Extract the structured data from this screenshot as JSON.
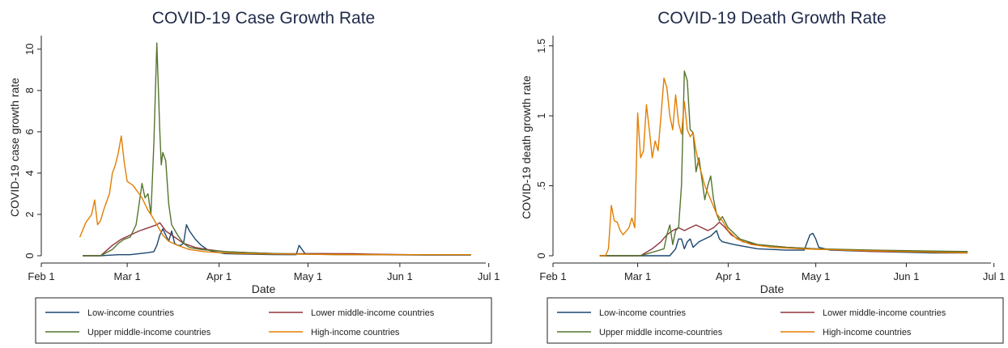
{
  "colors": {
    "low": "#1a476f",
    "lower_middle": "#90353b",
    "upper_middle": "#55752f",
    "high": "#e37e00"
  },
  "chart_data": [
    {
      "type": "line",
      "title": "COVID-19 Case Growth Rate",
      "xlabel": "Date",
      "ylabel": "COVID-19 case growth rate",
      "x_ticks": [
        "Feb 1",
        "Mar 1",
        "Apr 1",
        "May 1",
        "Jun 1",
        "Jul 1"
      ],
      "y_ticks": [
        "0",
        "2",
        "4",
        "6",
        "8",
        "10"
      ],
      "y_tick_values": [
        0,
        2,
        4,
        6,
        8,
        10
      ],
      "ylim": [
        0,
        10.5
      ],
      "x_domain_days": [
        0,
        150
      ],
      "legend_position": "bottom",
      "grid": false,
      "series": [
        {
          "name": "Low-income countries",
          "key": "low",
          "points": [
            [
              14,
              0
            ],
            [
              20,
              0
            ],
            [
              26,
              0.05
            ],
            [
              30,
              0.05
            ],
            [
              33,
              0.1
            ],
            [
              36,
              0.15
            ],
            [
              38,
              0.2
            ],
            [
              39,
              0.5
            ],
            [
              40,
              1.0
            ],
            [
              41,
              1.3
            ],
            [
              42,
              1.0
            ],
            [
              43,
              0.7
            ],
            [
              44,
              1.2
            ],
            [
              45,
              0.6
            ],
            [
              46,
              0.5
            ],
            [
              47,
              0.5
            ],
            [
              48,
              0.6
            ],
            [
              49,
              1.5
            ],
            [
              50,
              1.2
            ],
            [
              52,
              0.8
            ],
            [
              54,
              0.5
            ],
            [
              56,
              0.3
            ],
            [
              58,
              0.2
            ],
            [
              62,
              0.1
            ],
            [
              70,
              0.08
            ],
            [
              78,
              0.06
            ],
            [
              86,
              0.05
            ],
            [
              87,
              0.5
            ],
            [
              88,
              0.3
            ],
            [
              89,
              0.1
            ],
            [
              95,
              0.1
            ],
            [
              105,
              0.08
            ],
            [
              110,
              0.05
            ],
            [
              130,
              0.03
            ],
            [
              145,
              0.03
            ]
          ]
        },
        {
          "name": "Lower middle-income countries",
          "key": "lower_middle",
          "points": [
            [
              14,
              0
            ],
            [
              20,
              0
            ],
            [
              24,
              0.5
            ],
            [
              27,
              0.8
            ],
            [
              30,
              1.0
            ],
            [
              33,
              1.2
            ],
            [
              35,
              1.3
            ],
            [
              37,
              1.4
            ],
            [
              39,
              1.5
            ],
            [
              40,
              1.6
            ],
            [
              41,
              1.4
            ],
            [
              42,
              1.2
            ],
            [
              44,
              1.0
            ],
            [
              46,
              0.8
            ],
            [
              48,
              0.6
            ],
            [
              52,
              0.4
            ],
            [
              56,
              0.3
            ],
            [
              62,
              0.2
            ],
            [
              70,
              0.15
            ],
            [
              80,
              0.1
            ],
            [
              95,
              0.1
            ],
            [
              105,
              0.1
            ],
            [
              110,
              0.08
            ],
            [
              125,
              0.05
            ],
            [
              145,
              0.05
            ]
          ]
        },
        {
          "name": "Upper middle-income countries",
          "key": "upper_middle",
          "points": [
            [
              14,
              0
            ],
            [
              20,
              0
            ],
            [
              24,
              0.3
            ],
            [
              26,
              0.6
            ],
            [
              28,
              0.8
            ],
            [
              30,
              0.9
            ],
            [
              32,
              1.5
            ],
            [
              33,
              2.5
            ],
            [
              34,
              3.5
            ],
            [
              35,
              2.8
            ],
            [
              36,
              3.0
            ],
            [
              37,
              2.0
            ],
            [
              38,
              5.5
            ],
            [
              39,
              10.3
            ],
            [
              40,
              6.0
            ],
            [
              40.5,
              4.4
            ],
            [
              41,
              5.0
            ],
            [
              42,
              4.6
            ],
            [
              43,
              2.5
            ],
            [
              44,
              1.5
            ],
            [
              46,
              1.0
            ],
            [
              48,
              0.6
            ],
            [
              50,
              0.4
            ],
            [
              54,
              0.3
            ],
            [
              58,
              0.25
            ],
            [
              62,
              0.2
            ],
            [
              70,
              0.15
            ],
            [
              80,
              0.1
            ],
            [
              100,
              0.05
            ],
            [
              145,
              0.05
            ]
          ]
        },
        {
          "name": "High-income countries",
          "key": "high",
          "points": [
            [
              13,
              0.9
            ],
            [
              15,
              1.6
            ],
            [
              17,
              2.0
            ],
            [
              18,
              2.7
            ],
            [
              19,
              1.5
            ],
            [
              20,
              1.7
            ],
            [
              21,
              2.2
            ],
            [
              23,
              3.0
            ],
            [
              24,
              4.0
            ],
            [
              25,
              4.4
            ],
            [
              26,
              5.0
            ],
            [
              27,
              5.8
            ],
            [
              28,
              4.5
            ],
            [
              29,
              3.6
            ],
            [
              30,
              3.5
            ],
            [
              31,
              3.4
            ],
            [
              32,
              3.2
            ],
            [
              33,
              3.0
            ],
            [
              34,
              2.8
            ],
            [
              35,
              2.5
            ],
            [
              36,
              2.2
            ],
            [
              37,
              2.0
            ],
            [
              39,
              1.5
            ],
            [
              41,
              1.0
            ],
            [
              43,
              0.7
            ],
            [
              46,
              0.5
            ],
            [
              50,
              0.3
            ],
            [
              55,
              0.2
            ],
            [
              60,
              0.15
            ],
            [
              70,
              0.1
            ],
            [
              85,
              0.08
            ],
            [
              100,
              0.06
            ],
            [
              120,
              0.05
            ],
            [
              145,
              0.05
            ]
          ]
        }
      ]
    },
    {
      "type": "line",
      "title": "COVID-19 Death Growth Rate",
      "xlabel": "Date",
      "ylabel": "COVID-19 death growth rate",
      "x_ticks": [
        "Feb 1",
        "Mar 1",
        "Apr 1",
        "May 1",
        "Jun 1",
        "Jul 1"
      ],
      "y_ticks": [
        "0",
        ".5",
        "1",
        "1.5"
      ],
      "y_tick_values": [
        0,
        0.5,
        1,
        1.5
      ],
      "ylim": [
        0,
        1.55
      ],
      "x_domain_days": [
        0,
        150
      ],
      "legend_position": "bottom",
      "grid": false,
      "series": [
        {
          "name": "Low-income countries",
          "key": "low",
          "points": [
            [
              16,
              0
            ],
            [
              30,
              0
            ],
            [
              40,
              0
            ],
            [
              42,
              0.05
            ],
            [
              43,
              0.12
            ],
            [
              44,
              0.12
            ],
            [
              45,
              0.05
            ],
            [
              46,
              0.1
            ],
            [
              47,
              0.12
            ],
            [
              48,
              0.06
            ],
            [
              50,
              0.1
            ],
            [
              52,
              0.12
            ],
            [
              54,
              0.14
            ],
            [
              56,
              0.18
            ],
            [
              57,
              0.12
            ],
            [
              58,
              0.1
            ],
            [
              62,
              0.08
            ],
            [
              70,
              0.05
            ],
            [
              80,
              0.04
            ],
            [
              86,
              0.04
            ],
            [
              88,
              0.15
            ],
            [
              89,
              0.16
            ],
            [
              90,
              0.12
            ],
            [
              91,
              0.06
            ],
            [
              95,
              0.04
            ],
            [
              110,
              0.03
            ],
            [
              130,
              0.02
            ],
            [
              142,
              0.02
            ]
          ]
        },
        {
          "name": "Lower middle-income countries",
          "key": "lower_middle",
          "points": [
            [
              16,
              0
            ],
            [
              30,
              0
            ],
            [
              34,
              0.05
            ],
            [
              37,
              0.1
            ],
            [
              39,
              0.15
            ],
            [
              41,
              0.18
            ],
            [
              43,
              0.2
            ],
            [
              45,
              0.18
            ],
            [
              47,
              0.2
            ],
            [
              49,
              0.22
            ],
            [
              51,
              0.2
            ],
            [
              53,
              0.18
            ],
            [
              55,
              0.2
            ],
            [
              57,
              0.24
            ],
            [
              59,
              0.2
            ],
            [
              61,
              0.15
            ],
            [
              65,
              0.1
            ],
            [
              70,
              0.08
            ],
            [
              80,
              0.06
            ],
            [
              90,
              0.05
            ],
            [
              100,
              0.04
            ],
            [
              110,
              0.03
            ],
            [
              142,
              0.03
            ]
          ]
        },
        {
          "name": "Upper middle income-countries",
          "key": "upper_middle",
          "points": [
            [
              16,
              0
            ],
            [
              30,
              0
            ],
            [
              38,
              0.05
            ],
            [
              39,
              0.15
            ],
            [
              40,
              0.22
            ],
            [
              41,
              0.08
            ],
            [
              42,
              0.18
            ],
            [
              43,
              0.2
            ],
            [
              44,
              0.5
            ],
            [
              45,
              1.32
            ],
            [
              46,
              1.25
            ],
            [
              47,
              0.9
            ],
            [
              48,
              0.88
            ],
            [
              49,
              0.6
            ],
            [
              50,
              0.7
            ],
            [
              51,
              0.55
            ],
            [
              52,
              0.4
            ],
            [
              53,
              0.5
            ],
            [
              54,
              0.57
            ],
            [
              55,
              0.4
            ],
            [
              56,
              0.3
            ],
            [
              57,
              0.25
            ],
            [
              58,
              0.28
            ],
            [
              60,
              0.2
            ],
            [
              64,
              0.12
            ],
            [
              70,
              0.08
            ],
            [
              80,
              0.06
            ],
            [
              90,
              0.05
            ],
            [
              110,
              0.04
            ],
            [
              142,
              0.03
            ]
          ]
        },
        {
          "name": "High-income countries",
          "key": "high",
          "points": [
            [
              16,
              0
            ],
            [
              18,
              0
            ],
            [
              19,
              0.05
            ],
            [
              20,
              0.36
            ],
            [
              21,
              0.25
            ],
            [
              22,
              0.24
            ],
            [
              23,
              0.18
            ],
            [
              24,
              0.15
            ],
            [
              26,
              0.2
            ],
            [
              27,
              0.27
            ],
            [
              28,
              0.2
            ],
            [
              29,
              1.02
            ],
            [
              30,
              0.7
            ],
            [
              31,
              0.75
            ],
            [
              32,
              1.08
            ],
            [
              33,
              0.9
            ],
            [
              34,
              0.7
            ],
            [
              35,
              0.82
            ],
            [
              36,
              0.75
            ],
            [
              37,
              1.0
            ],
            [
              38,
              1.27
            ],
            [
              39,
              1.2
            ],
            [
              40,
              1.0
            ],
            [
              41,
              0.9
            ],
            [
              42,
              1.15
            ],
            [
              43,
              0.95
            ],
            [
              44,
              0.87
            ],
            [
              45,
              1.1
            ],
            [
              46,
              0.9
            ],
            [
              47,
              0.85
            ],
            [
              48,
              0.88
            ],
            [
              49,
              0.75
            ],
            [
              50,
              0.65
            ],
            [
              51,
              0.58
            ],
            [
              52,
              0.5
            ],
            [
              53,
              0.45
            ],
            [
              54,
              0.4
            ],
            [
              56,
              0.3
            ],
            [
              58,
              0.25
            ],
            [
              60,
              0.18
            ],
            [
              63,
              0.12
            ],
            [
              68,
              0.08
            ],
            [
              75,
              0.06
            ],
            [
              85,
              0.05
            ],
            [
              100,
              0.04
            ],
            [
              120,
              0.03
            ],
            [
              142,
              0.02
            ]
          ]
        }
      ]
    }
  ]
}
